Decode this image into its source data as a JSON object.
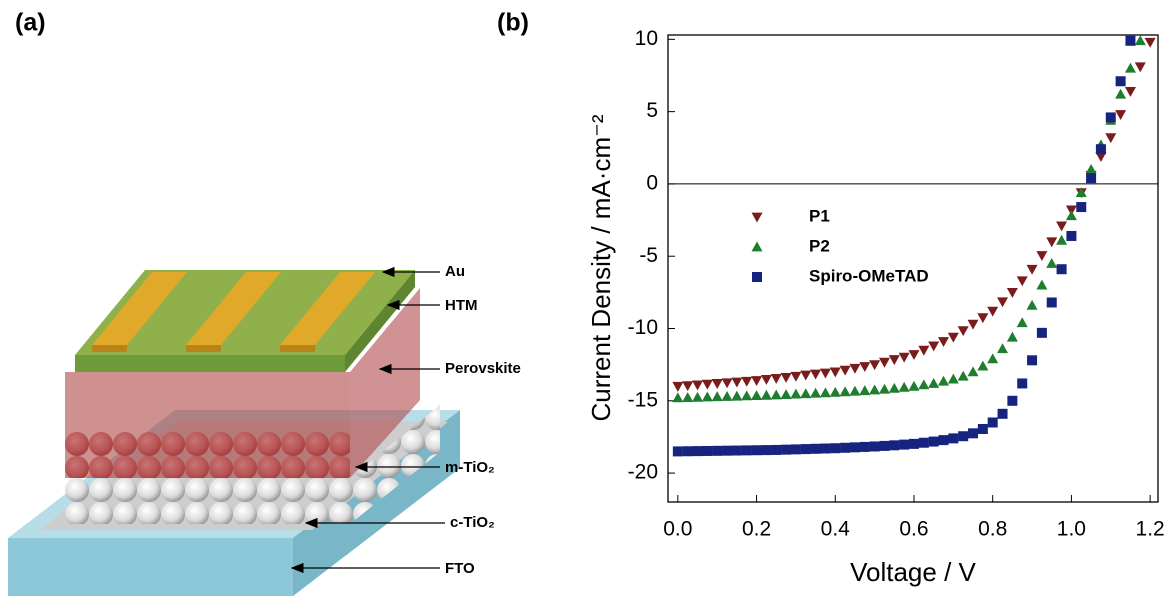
{
  "panel_labels": [
    "(a)",
    "(b)"
  ],
  "diagram": {
    "layers": [
      "Au",
      "HTM",
      "Perovskite",
      "m-TiO₂",
      "c-TiO₂",
      "FTO"
    ]
  },
  "chart_data": {
    "type": "scatter",
    "xlabel": "Voltage / V",
    "ylabel": "Current Density / mA·cm⁻²",
    "xlim": [
      -0.025,
      1.22
    ],
    "ylim": [
      -22,
      10.3
    ],
    "xticks": [
      {
        "value": 0,
        "label": "0.0"
      },
      0.2,
      0.4,
      0.6,
      0.8,
      {
        "value": 1,
        "label": "1.0"
      },
      1.2
    ],
    "yticks": [
      -20,
      -15,
      -10,
      -5,
      0,
      5,
      10
    ],
    "zero_line": true,
    "legend": "center-left",
    "x": [
      0,
      0.025,
      0.05,
      0.075,
      0.1,
      0.125,
      0.15,
      0.175,
      0.2,
      0.225,
      0.25,
      0.275,
      0.3,
      0.325,
      0.35,
      0.375,
      0.4,
      0.425,
      0.45,
      0.475,
      0.5,
      0.525,
      0.55,
      0.575,
      0.6,
      0.625,
      0.65,
      0.675,
      0.7,
      0.725,
      0.75,
      0.775,
      0.8,
      0.825,
      0.85,
      0.875,
      0.9,
      0.925,
      0.95,
      0.975,
      1,
      1.025,
      1.05,
      1.075,
      1.1,
      1.125,
      1.15,
      1.175,
      1.2
    ],
    "series": [
      {
        "name": "P1",
        "color": "#7b1c1c",
        "marker": "triangle-down",
        "values": [
          -14.0,
          -13.95,
          -13.9,
          -13.85,
          -13.8,
          -13.75,
          -13.7,
          -13.65,
          -13.6,
          -13.52,
          -13.45,
          -13.38,
          -13.3,
          -13.22,
          -13.15,
          -13.08,
          -13.0,
          -12.88,
          -12.75,
          -12.63,
          -12.5,
          -12.33,
          -12.15,
          -11.98,
          -11.8,
          -11.5,
          -11.2,
          -10.9,
          -10.6,
          -10.15,
          -9.7,
          -9.25,
          -8.8,
          -8.15,
          -7.5,
          -6.7,
          -5.9,
          -4.95,
          -4.0,
          -2.9,
          -1.8,
          -0.6,
          0.6,
          1.9,
          3.2,
          4.8,
          6.4,
          8.1,
          9.8
        ]
      },
      {
        "name": "P2",
        "color": "#1e7d2e",
        "marker": "triangle-up",
        "values": [
          -14.8,
          -14.78,
          -14.76,
          -14.74,
          -14.72,
          -14.7,
          -14.68,
          -14.66,
          -14.64,
          -14.62,
          -14.6,
          -14.57,
          -14.54,
          -14.51,
          -14.48,
          -14.45,
          -14.42,
          -14.38,
          -14.34,
          -14.3,
          -14.25,
          -14.2,
          -14.14,
          -14.07,
          -14.0,
          -13.9,
          -13.8,
          -13.65,
          -13.5,
          -13.3,
          -13.0,
          -12.6,
          -12.1,
          -11.4,
          -10.6,
          -9.6,
          -8.4,
          -7.0,
          -5.5,
          -3.9,
          -2.2,
          -0.6,
          1.0,
          2.7,
          4.4,
          6.2,
          8.0,
          9.9,
          null
        ]
      },
      {
        "name": "Spiro-OMeTAD",
        "color": "#16237f",
        "marker": "square",
        "values": [
          -18.5,
          -18.49,
          -18.48,
          -18.47,
          -18.46,
          -18.45,
          -18.44,
          -18.43,
          -18.42,
          -18.41,
          -18.4,
          -18.38,
          -18.36,
          -18.34,
          -18.32,
          -18.3,
          -18.28,
          -18.25,
          -18.22,
          -18.19,
          -18.16,
          -18.12,
          -18.08,
          -18.03,
          -17.98,
          -17.9,
          -17.82,
          -17.72,
          -17.6,
          -17.45,
          -17.25,
          -16.95,
          -16.5,
          -15.9,
          -15.0,
          -13.8,
          -12.2,
          -10.3,
          -8.2,
          -5.9,
          -3.6,
          -1.6,
          0.4,
          2.4,
          4.6,
          7.1,
          9.9,
          null,
          null
        ]
      }
    ]
  }
}
